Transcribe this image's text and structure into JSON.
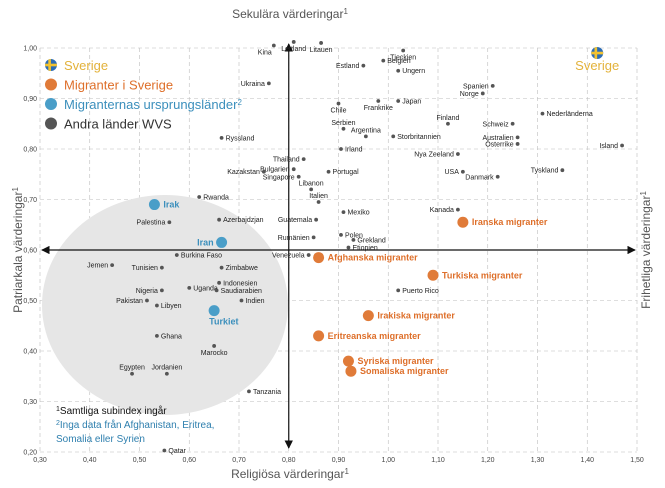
{
  "chart_data": {
    "type": "scatter",
    "axis_titles": {
      "top": "Sekulära värderingar",
      "bottom": "Religiösa värderingar",
      "left": "Patriarkala värderingar",
      "right": "Frihetliga värderingar",
      "superscript": "1"
    },
    "xlim": [
      0.3,
      1.5
    ],
    "ylim": [
      0.2,
      1.0
    ],
    "x_ticks": [
      "0,30",
      "0,40",
      "0,50",
      "0,60",
      "0,70",
      "0,80",
      "0,90",
      "1,00",
      "1,10",
      "1,20",
      "1,30",
      "1,40",
      "1,50"
    ],
    "y_ticks": [
      "0,20",
      "0,30",
      "0,40",
      "0,50",
      "0,60",
      "0,70",
      "0,80",
      "0,90",
      "1,00"
    ],
    "center": [
      0.8,
      0.6
    ],
    "grid": true,
    "colors": {
      "sweden": "#e3b23a",
      "migrants": "#e07b39",
      "origin": "#4a9ec8",
      "other": "#555555",
      "ellipse": "#e6e6e6"
    },
    "legend": [
      {
        "label": "Sverige",
        "kind": "sweden",
        "sup": ""
      },
      {
        "label": "Migranter i Sverige",
        "kind": "migrants",
        "sup": ""
      },
      {
        "label": "Migranternas ursprungsländer",
        "kind": "origin",
        "sup": "2"
      },
      {
        "label": "Andra länder WVS",
        "kind": "other",
        "sup": ""
      }
    ],
    "notes": {
      "note1": "Samtliga subindex ingår",
      "note2_line1": "Inga data från Afghanistan, Eritrea,",
      "note2_line2": "Somalia eller Syrien"
    },
    "sweden": {
      "label": "Sverige",
      "x": 1.42,
      "y": 0.99
    },
    "migrants": [
      {
        "label": "Iranska migranter",
        "x": 1.15,
        "y": 0.655
      },
      {
        "label": "Afghanska migranter",
        "x": 0.86,
        "y": 0.585
      },
      {
        "label": "Turkiska migranter",
        "x": 1.09,
        "y": 0.55
      },
      {
        "label": "Irakiska migranter",
        "x": 0.96,
        "y": 0.47
      },
      {
        "label": "Eritreanska migranter",
        "x": 0.86,
        "y": 0.43
      },
      {
        "label": "Syriska migranter",
        "x": 0.92,
        "y": 0.38
      },
      {
        "label": "Somaliska migranter",
        "x": 0.925,
        "y": 0.36
      }
    ],
    "origin": [
      {
        "label": "Irak",
        "x": 0.53,
        "y": 0.69
      },
      {
        "label": "Iran",
        "x": 0.665,
        "y": 0.615
      },
      {
        "label": "Turkiet",
        "x": 0.65,
        "y": 0.48
      }
    ],
    "others": [
      {
        "label": "Kina",
        "x": 0.77,
        "y": 1.005,
        "pos": "bl"
      },
      {
        "label": "Lettland",
        "x": 0.81,
        "y": 1.012,
        "pos": "b"
      },
      {
        "label": "Litauen",
        "x": 0.865,
        "y": 1.01,
        "pos": "b"
      },
      {
        "label": "Tjeckien",
        "x": 1.03,
        "y": 0.995,
        "pos": "b"
      },
      {
        "label": "Estland",
        "x": 0.95,
        "y": 0.965,
        "pos": "l"
      },
      {
        "label": "Belgien",
        "x": 0.99,
        "y": 0.975,
        "pos": "r"
      },
      {
        "label": "Ungern",
        "x": 1.02,
        "y": 0.955,
        "pos": "r"
      },
      {
        "label": "Ukraina",
        "x": 0.76,
        "y": 0.93,
        "pos": "l"
      },
      {
        "label": "Spanien",
        "x": 1.21,
        "y": 0.925,
        "pos": "l"
      },
      {
        "label": "Norge",
        "x": 1.19,
        "y": 0.91,
        "pos": "l"
      },
      {
        "label": "Japan",
        "x": 1.02,
        "y": 0.895,
        "pos": "r"
      },
      {
        "label": "Chile",
        "x": 0.9,
        "y": 0.89,
        "pos": "b"
      },
      {
        "label": "Frankrike",
        "x": 0.98,
        "y": 0.895,
        "pos": "b"
      },
      {
        "label": "Nederländerna",
        "x": 1.31,
        "y": 0.87,
        "pos": "r"
      },
      {
        "label": "Finland",
        "x": 1.12,
        "y": 0.85,
        "pos": "t"
      },
      {
        "label": "Serbien",
        "x": 0.91,
        "y": 0.84,
        "pos": "t"
      },
      {
        "label": "Schweiz",
        "x": 1.25,
        "y": 0.85,
        "pos": "l"
      },
      {
        "label": "Argentina",
        "x": 0.955,
        "y": 0.825,
        "pos": "t"
      },
      {
        "label": "Storbritannien",
        "x": 1.01,
        "y": 0.825,
        "pos": "r"
      },
      {
        "label": "Ryssland",
        "x": 0.665,
        "y": 0.822,
        "pos": "r"
      },
      {
        "label": "Australien",
        "x": 1.26,
        "y": 0.823,
        "pos": "l"
      },
      {
        "label": "Österrike",
        "x": 1.26,
        "y": 0.81,
        "pos": "l"
      },
      {
        "label": "Island",
        "x": 1.47,
        "y": 0.807,
        "pos": "l"
      },
      {
        "label": "Irland",
        "x": 0.905,
        "y": 0.8,
        "pos": "r"
      },
      {
        "label": "Nya Zeeland",
        "x": 1.14,
        "y": 0.79,
        "pos": "l"
      },
      {
        "label": "Thailand",
        "x": 0.83,
        "y": 0.78,
        "pos": "l"
      },
      {
        "label": "Bulgarien",
        "x": 0.81,
        "y": 0.76,
        "pos": "l"
      },
      {
        "label": "Kazakstan",
        "x": 0.75,
        "y": 0.755,
        "pos": "l"
      },
      {
        "label": "Portugal",
        "x": 0.88,
        "y": 0.755,
        "pos": "r"
      },
      {
        "label": "USA",
        "x": 1.15,
        "y": 0.755,
        "pos": "l"
      },
      {
        "label": "Tyskland",
        "x": 1.35,
        "y": 0.758,
        "pos": "l"
      },
      {
        "label": "Singapore",
        "x": 0.82,
        "y": 0.745,
        "pos": "l"
      },
      {
        "label": "Danmark",
        "x": 1.22,
        "y": 0.745,
        "pos": "l"
      },
      {
        "label": "Libanon",
        "x": 0.845,
        "y": 0.72,
        "pos": "t"
      },
      {
        "label": "Rwanda",
        "x": 0.62,
        "y": 0.705,
        "pos": "r"
      },
      {
        "label": "Italien",
        "x": 0.86,
        "y": 0.695,
        "pos": "t"
      },
      {
        "label": "Kanada",
        "x": 1.14,
        "y": 0.68,
        "pos": "l"
      },
      {
        "label": "Mexiko",
        "x": 0.91,
        "y": 0.675,
        "pos": "r"
      },
      {
        "label": "Palestina",
        "x": 0.56,
        "y": 0.655,
        "pos": "l"
      },
      {
        "label": "Azerbajdzjan",
        "x": 0.66,
        "y": 0.66,
        "pos": "r"
      },
      {
        "label": "Guatemala",
        "x": 0.855,
        "y": 0.66,
        "pos": "l"
      },
      {
        "label": "Polen",
        "x": 0.905,
        "y": 0.63,
        "pos": "r"
      },
      {
        "label": "Rumänien",
        "x": 0.85,
        "y": 0.625,
        "pos": "l"
      },
      {
        "label": "Grekland",
        "x": 0.93,
        "y": 0.62,
        "pos": "r"
      },
      {
        "label": "Etiopien",
        "x": 0.92,
        "y": 0.605,
        "pos": "r"
      },
      {
        "label": "Venezuela",
        "x": 0.84,
        "y": 0.59,
        "pos": "l"
      },
      {
        "label": "Burkina Faso",
        "x": 0.575,
        "y": 0.59,
        "pos": "r"
      },
      {
        "label": "Jemen",
        "x": 0.445,
        "y": 0.57,
        "pos": "l"
      },
      {
        "label": "Tunisien",
        "x": 0.545,
        "y": 0.565,
        "pos": "l"
      },
      {
        "label": "Zimbabwe",
        "x": 0.665,
        "y": 0.565,
        "pos": "r"
      },
      {
        "label": "Indonesien",
        "x": 0.66,
        "y": 0.535,
        "pos": "r"
      },
      {
        "label": "Uganda",
        "x": 0.6,
        "y": 0.525,
        "pos": "r"
      },
      {
        "label": "Nigeria",
        "x": 0.545,
        "y": 0.52,
        "pos": "l"
      },
      {
        "label": "Saudiarabien",
        "x": 0.655,
        "y": 0.52,
        "pos": "r"
      },
      {
        "label": "Pakistan",
        "x": 0.515,
        "y": 0.5,
        "pos": "l"
      },
      {
        "label": "Indien",
        "x": 0.705,
        "y": 0.5,
        "pos": "r"
      },
      {
        "label": "Libyen",
        "x": 0.535,
        "y": 0.49,
        "pos": "r"
      },
      {
        "label": "Puerto Rico",
        "x": 1.02,
        "y": 0.52,
        "pos": "r"
      },
      {
        "label": "Ghana",
        "x": 0.535,
        "y": 0.43,
        "pos": "r"
      },
      {
        "label": "Marocko",
        "x": 0.65,
        "y": 0.41,
        "pos": "b"
      },
      {
        "label": "Egypten",
        "x": 0.485,
        "y": 0.355,
        "pos": "t"
      },
      {
        "label": "Jordanien",
        "x": 0.555,
        "y": 0.355,
        "pos": "t"
      },
      {
        "label": "Tanzania",
        "x": 0.72,
        "y": 0.32,
        "pos": "r"
      },
      {
        "label": "Qatar",
        "x": 0.55,
        "y": 0.203,
        "pos": "r"
      }
    ]
  }
}
